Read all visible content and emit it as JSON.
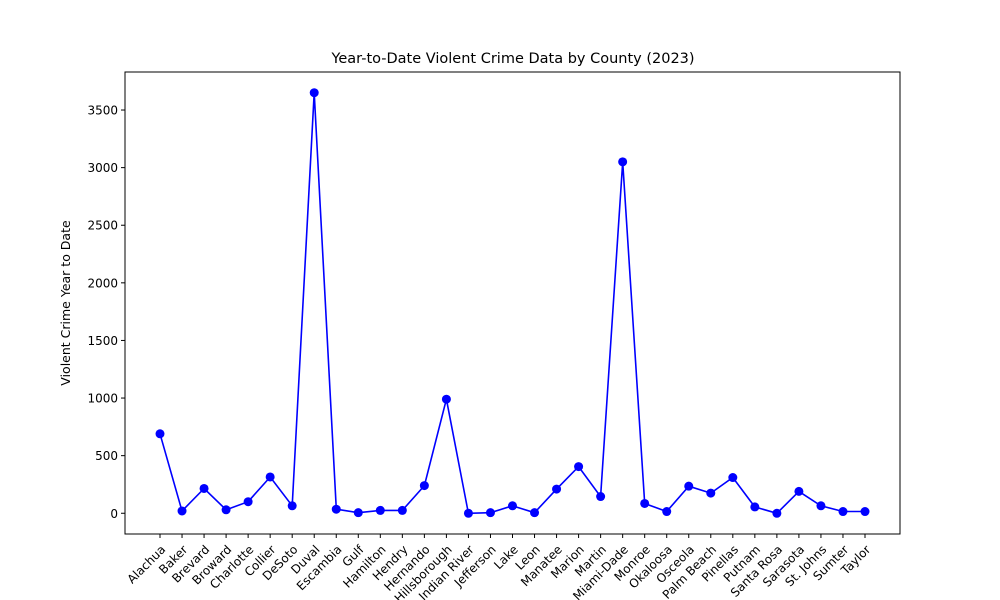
{
  "chart_data": {
    "type": "line",
    "title": "Year-to-Date Violent Crime Data by County (2023)",
    "xlabel": "",
    "ylabel": "Violent Crime Year to Date",
    "ylim": [
      -180,
      3830
    ],
    "yticks": [
      0,
      500,
      1000,
      1500,
      2000,
      2500,
      3000,
      3500
    ],
    "grid": false,
    "categories": [
      "Alachua",
      "Baker",
      "Brevard",
      "Broward",
      "Charlotte",
      "Collier",
      "DeSoto",
      "Duval",
      "Escambia",
      "Gulf",
      "Hamilton",
      "Hendry",
      "Hernando",
      "Hillsborough",
      "Indian River",
      "Jefferson",
      "Lake",
      "Leon",
      "Manatee",
      "Marion",
      "Martin",
      "Miami-Dade",
      "Monroe",
      "Okaloosa",
      "Osceola",
      "Palm Beach",
      "Pinellas",
      "Putnam",
      "Santa Rosa",
      "Sarasota",
      "St. Johns",
      "Sumter",
      "Taylor"
    ],
    "series": [
      {
        "color": "#0000ff",
        "marker": "circle",
        "values": [
          690,
          20,
          215,
          30,
          100,
          315,
          65,
          3650,
          35,
          5,
          25,
          25,
          240,
          990,
          0,
          5,
          65,
          5,
          210,
          405,
          145,
          3050,
          85,
          15,
          235,
          175,
          310,
          55,
          0,
          190,
          65,
          15,
          15
        ]
      }
    ]
  }
}
